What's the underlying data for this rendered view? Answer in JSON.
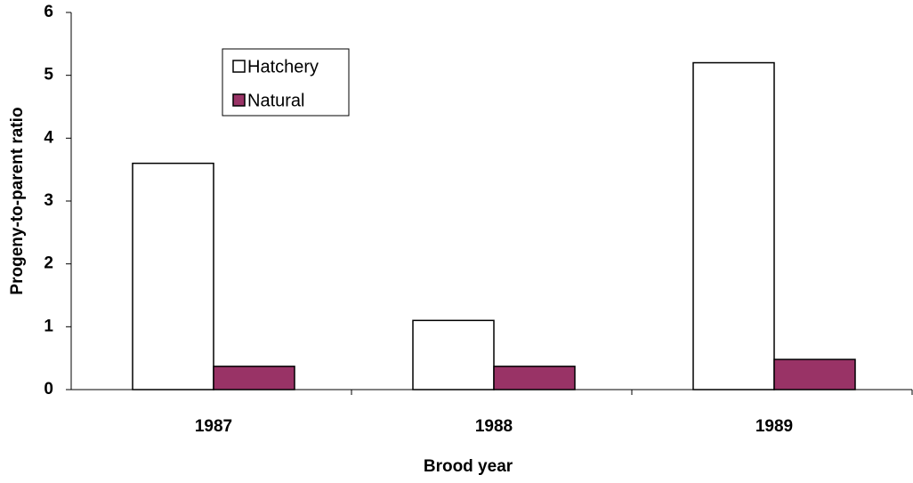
{
  "chart_data": {
    "type": "bar",
    "x_label": "Brood year",
    "y_label": "Progeny-to-parent ratio",
    "categories": [
      "1987",
      "1988",
      "1989"
    ],
    "series": [
      {
        "name": "Hatchery",
        "color": "#ffffff",
        "values": [
          3.6,
          1.1,
          5.2
        ]
      },
      {
        "name": "Natural",
        "color": "#993366",
        "values": [
          0.37,
          0.37,
          0.48
        ]
      }
    ],
    "ylim": [
      0,
      6
    ],
    "yticks": [
      0,
      1,
      2,
      3,
      4,
      5,
      6
    ],
    "grid": false,
    "legend": "upper left"
  }
}
